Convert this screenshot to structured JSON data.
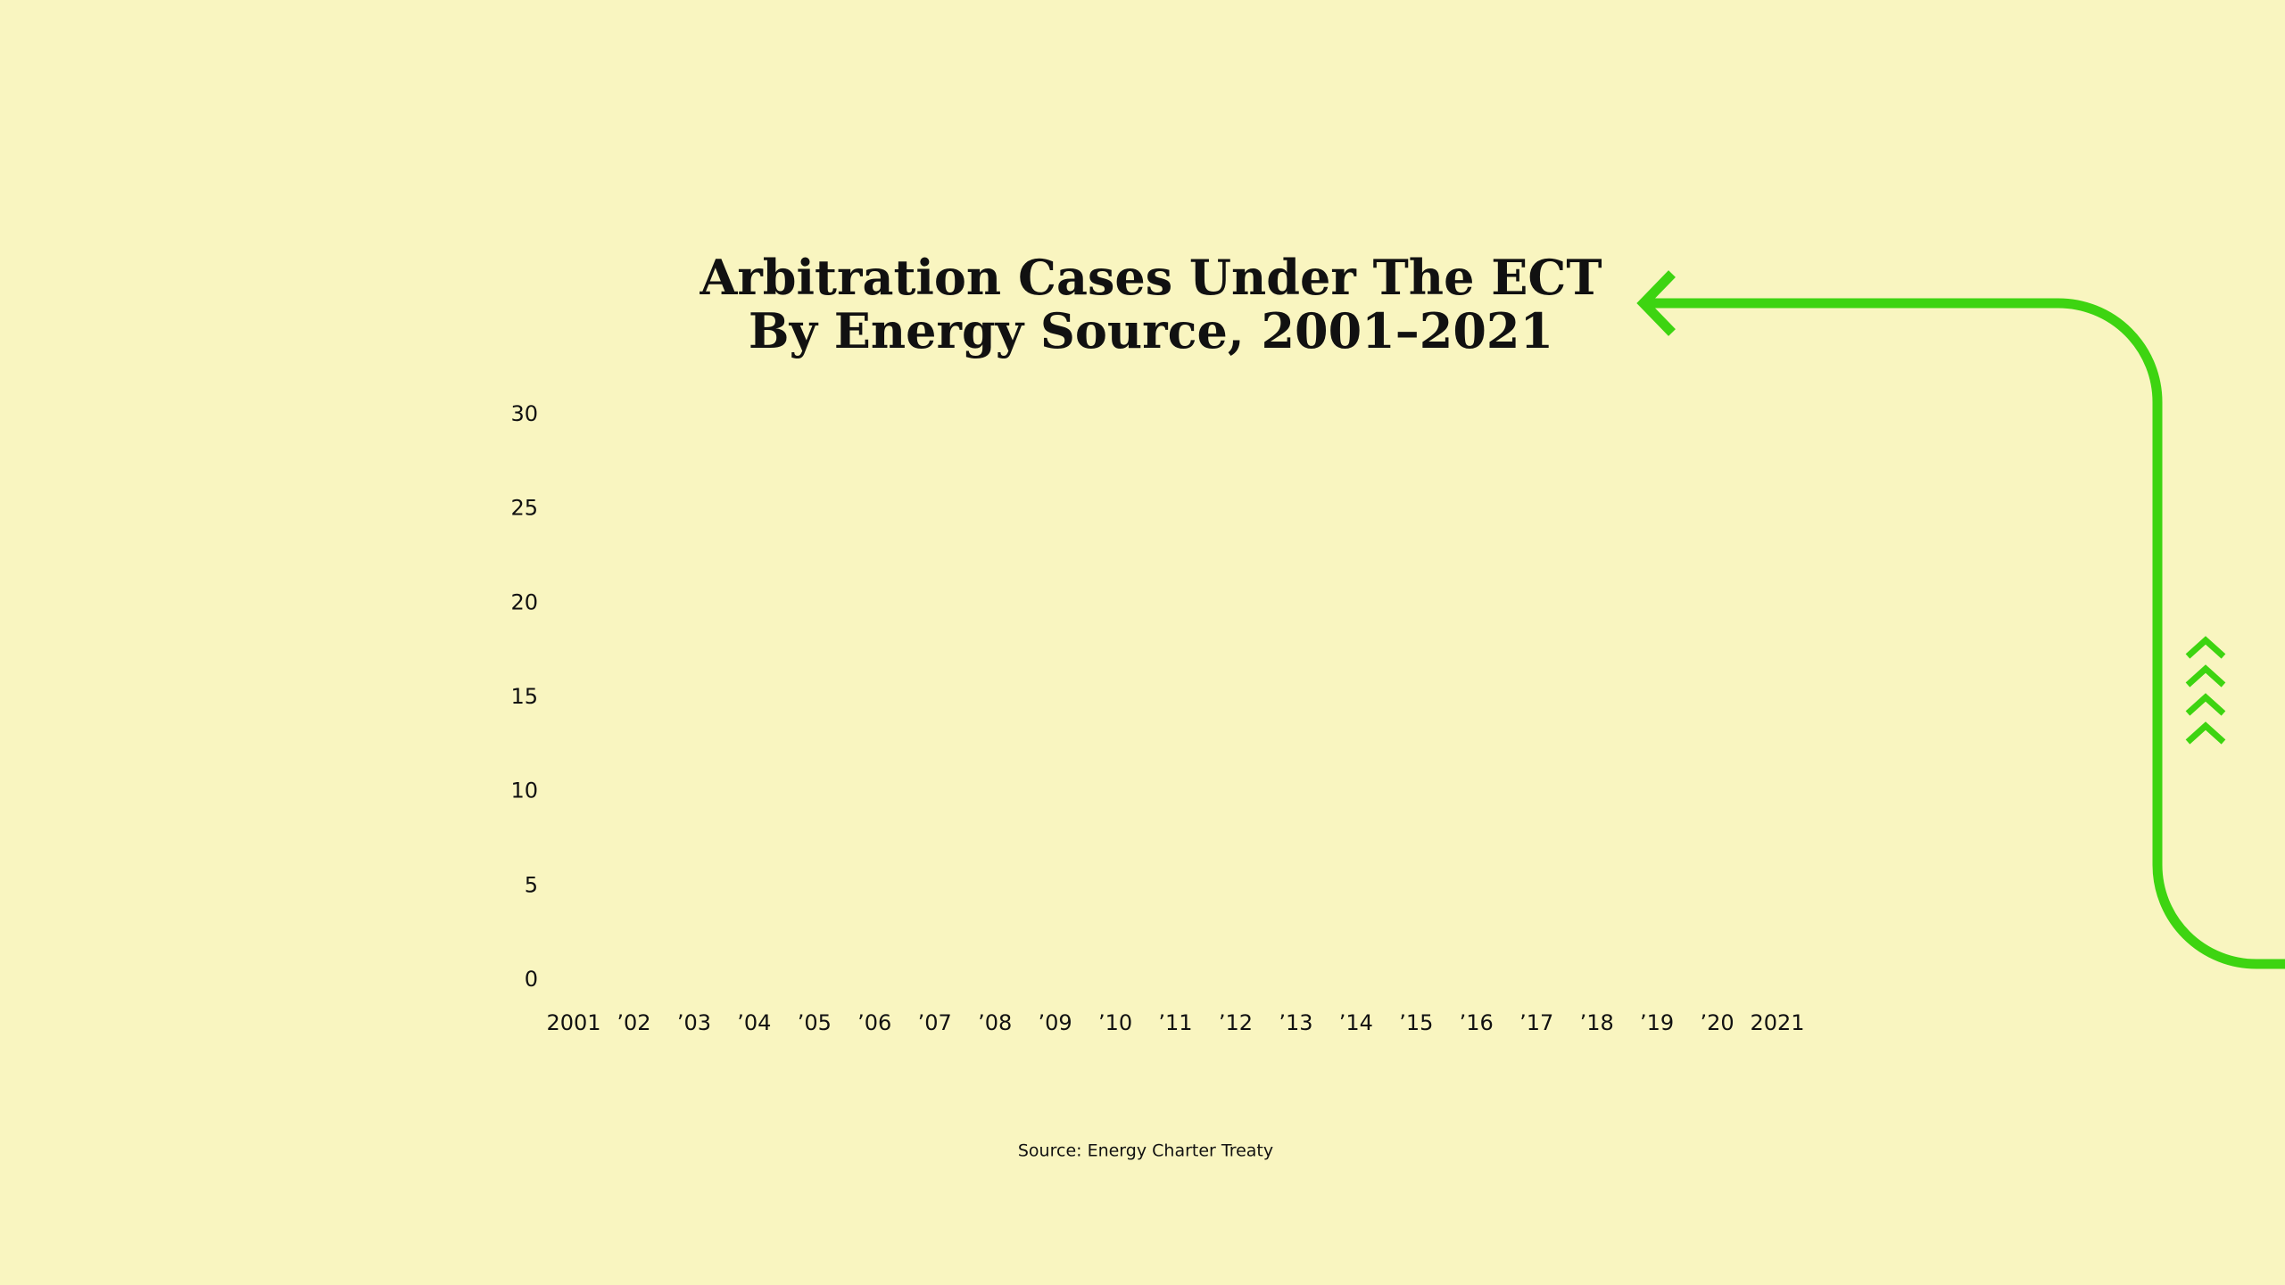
{
  "chart_data": {
    "type": "bar",
    "title": "Arbitration Cases Under The ECT",
    "subtitle": "By Energy Source, 2001–2021",
    "categories": [
      "2001",
      "’02",
      "’03",
      "’04",
      "’05",
      "’06",
      "’07",
      "’08",
      "’09",
      "’10",
      "’11",
      "’12",
      "’13",
      "’14",
      "’15",
      "’16",
      "’17",
      "’18",
      "’19",
      "’20",
      "2021"
    ],
    "ylim": [
      0,
      30
    ],
    "yticks": [
      0,
      5,
      10,
      15,
      20,
      25,
      30
    ],
    "source": "Source: Energy Charter Treaty"
  }
}
